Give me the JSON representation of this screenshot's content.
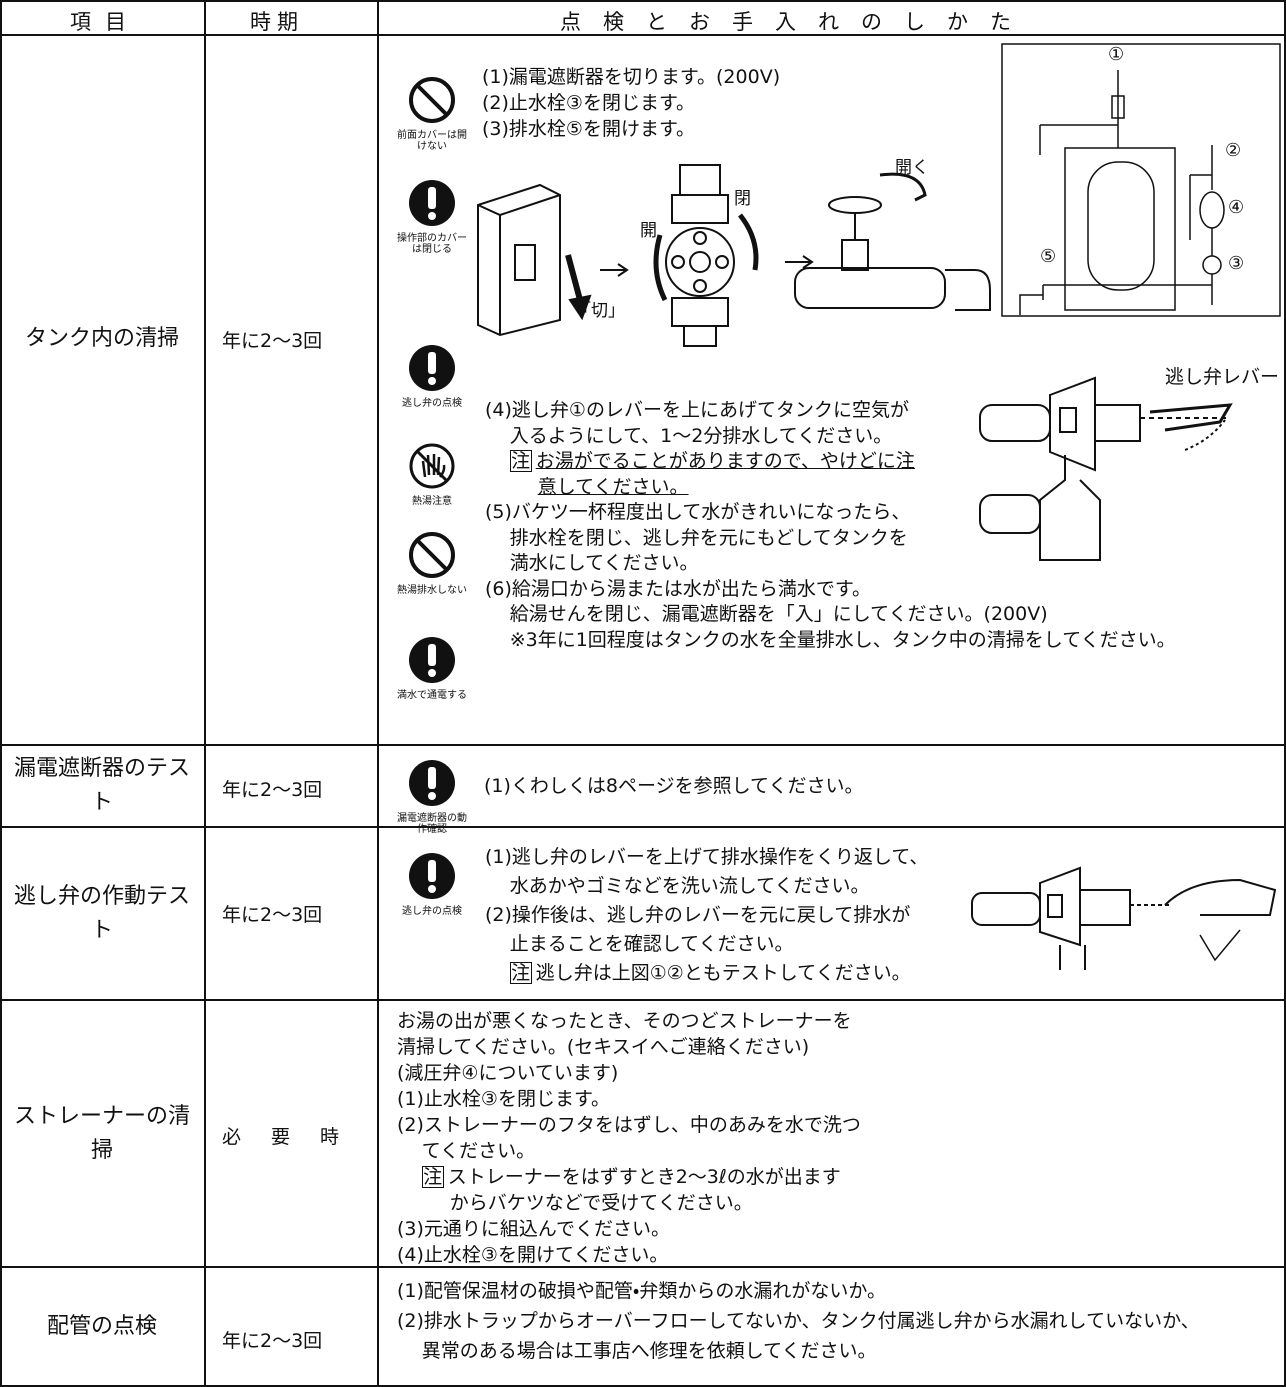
{
  "header": {
    "item": "項目",
    "period": "時期",
    "method": "点検とお手入れのしかた"
  },
  "rows": [
    {
      "item": "タンク内の清掃",
      "period": "年に2～3回",
      "icons": [
        "前面カバーは開けない",
        "操作部のカバーは閉じる",
        "逃し弁の点検",
        "熱湯注意",
        "熱湯排水しない",
        "満水で通電する"
      ],
      "steps": [
        "(1)漏電遮断器を切ります。(200V)",
        "(2)止水栓③を閉じます。",
        "(3)排水栓⑤を開けます。"
      ],
      "diagram_labels": [
        "「切」",
        "開",
        "閉",
        "開く",
        "①",
        "②",
        "④",
        "③",
        "⑤"
      ],
      "lines": [
        "(4)逃し弁①のレバーを上にあげてタンクに空気が",
        "入るようにして、1～2分排水してください。",
        {
          "note": "注",
          "lines": [
            "お湯がでることがありますので、やけどに注",
            "意してください。"
          ]
        },
        "(5)バケツ一杯程度出して水がきれいになったら、",
        "排水栓を閉じ、逃し弁を元にもどしてタンクを",
        "満水にしてください。",
        "(6)給湯口から湯または水が出たら満水です。",
        "給湯せんを閉じ、漏電遮断器を「入」にしてください。(200V)",
        "※3年に1回程度はタンクの水を全量排水し、タンク中の清掃をしてください。"
      ],
      "lever_label": "逃し弁レバー"
    },
    {
      "item": "漏電遮断器のテスト",
      "period": "年に2～3回",
      "icons": [
        "漏電遮断器の動作確認"
      ],
      "lines": [
        "(1)くわしくは8ページを参照してください。"
      ]
    },
    {
      "item": "逃し弁の作動テスト",
      "period": "年に2～3回",
      "icons": [
        "逃し弁の点検"
      ],
      "lines": [
        "(1)逃し弁のレバーを上げて排水操作をくり返して、",
        "水あかやゴミなどを洗い流してください。",
        "(2)操作後は、逃し弁のレバーを元に戻して排水が",
        "止まることを確認してください。",
        {
          "note": "注",
          "lines": [
            "逃し弁は上図①②ともテストしてください。"
          ]
        }
      ]
    },
    {
      "item": "ストレーナーの清掃",
      "period": "必要時",
      "lines": [
        "お湯の出が悪くなったとき、そのつどストレーナーを",
        "清掃してください。(セキスイへご連絡ください)",
        "(減圧弁④についています)",
        "(1)止水栓③を閉じます。",
        "(2)ストレーナーのフタをはずし、中のあみを水で洗つ",
        "てください。",
        {
          "note": "注",
          "lines": [
            "ストレーナーをはずすとき2～3ℓの水が出ます",
            "からバケツなどで受けてください。"
          ]
        },
        "(3)元通りに組込んでください。",
        "(4)止水栓③を開けてください。"
      ]
    },
    {
      "item": "配管の点検",
      "period": "年に2～3回",
      "lines": [
        "(1)配管保温材の破損や配管・弁類からの水漏れがないか。",
        "(2)排水トラップからオーバーフローしてないか、タンク付属逃し弁から水漏れしていないか、",
        "異常のある場合は工事店へ修理を依頼してください。"
      ]
    }
  ]
}
